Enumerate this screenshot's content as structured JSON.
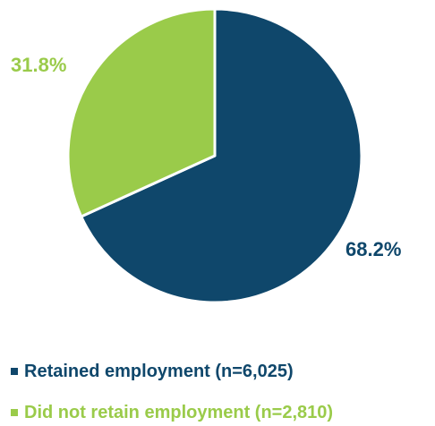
{
  "colors": {
    "retained": "#0f476b",
    "not_retained": "#9acb4a"
  },
  "chart_data": {
    "type": "pie",
    "title": "",
    "slices": [
      {
        "label": "Retained employment (n=6,025)",
        "value": 68.2,
        "value_label": "68.2%",
        "color": "#0f476b"
      },
      {
        "label": "Did not retain employment (n=2,810)",
        "value": 31.8,
        "value_label": "31.8%",
        "color": "#9acb4a"
      }
    ],
    "start": "12 o'clock",
    "direction": "clockwise",
    "legend_position": "bottom-left"
  }
}
